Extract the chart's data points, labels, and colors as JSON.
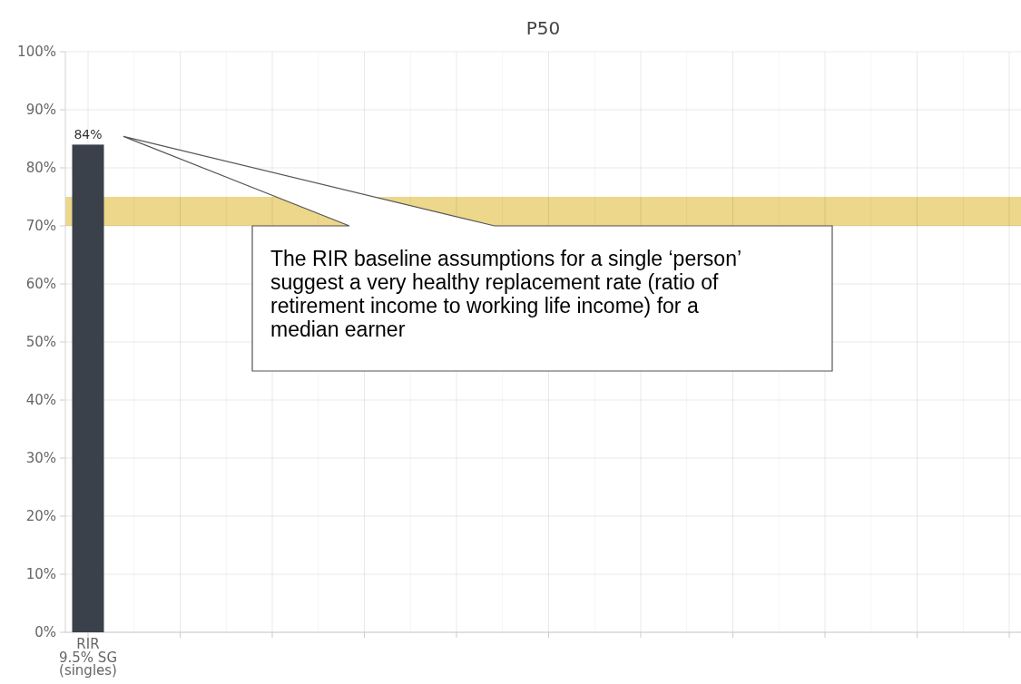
{
  "chart_data": {
    "type": "bar",
    "title": "P50",
    "categories": [
      "RIR\n9.5% SG\n(singles)",
      null,
      null,
      null,
      null,
      null,
      null,
      null,
      null,
      null,
      null
    ],
    "values": [
      84,
      null,
      null,
      null,
      null,
      null,
      null,
      null,
      null,
      null,
      null
    ],
    "color": "#3b414b",
    "value_labels": [
      "84%",
      null,
      null,
      null,
      null,
      null,
      null,
      null,
      null,
      null,
      null
    ],
    "ylim": [
      0,
      100
    ],
    "yticks": [
      {
        "value": 0,
        "label": "0%"
      },
      {
        "value": 10,
        "label": "10%"
      },
      {
        "value": 20,
        "label": "20%"
      },
      {
        "value": 30,
        "label": "30%"
      },
      {
        "value": 40,
        "label": "40%"
      },
      {
        "value": 50,
        "label": "50%"
      },
      {
        "value": 60,
        "label": "60%"
      },
      {
        "value": 70,
        "label": "70%"
      },
      {
        "value": 80,
        "label": "80%"
      },
      {
        "value": 90,
        "label": "90%"
      },
      {
        "value": 100,
        "label": "100%"
      }
    ],
    "grid": true,
    "bands": [
      {
        "axis": "y",
        "from": 70,
        "to": 75,
        "color": "#ecd78a"
      }
    ],
    "annotations": [
      "The RIR baseline assumptions for a single ‘person’ suggest a very healthy replacement rate (ratio of retirement income to working life income) for a median earner"
    ]
  }
}
